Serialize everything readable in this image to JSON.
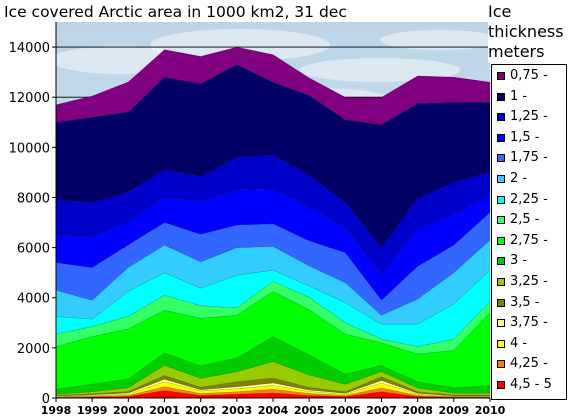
{
  "chart_data": {
    "type": "area",
    "stacked": true,
    "title": "Ice covered Arctic area in 1000 km2, 31 dec",
    "legend_title": [
      "Ice",
      "thickness",
      "meters"
    ],
    "legend_position": "right",
    "xlabel": "",
    "ylabel": "",
    "ylim": [
      0,
      15000
    ],
    "yticks": [
      0,
      2000,
      4000,
      6000,
      8000,
      10000,
      12000,
      14000
    ],
    "ytick_labels": [
      "0",
      "2000",
      "4000",
      "6000",
      "8000",
      "10000",
      "12000",
      "14000"
    ],
    "x": [
      "1998",
      "1999",
      "2000",
      "2001",
      "2002",
      "2003",
      "2004",
      "2005",
      "2006",
      "2007",
      "2008",
      "2009",
      "2010"
    ],
    "grid": "horizontal",
    "series": [
      {
        "name": "4,5 - 5",
        "color": "#ff0000",
        "values": [
          20,
          40,
          60,
          300,
          100,
          150,
          200,
          100,
          60,
          250,
          60,
          30,
          30
        ]
      },
      {
        "name": "4,25 -",
        "color": "#ff7f00",
        "values": [
          20,
          30,
          40,
          150,
          80,
          100,
          150,
          80,
          40,
          150,
          40,
          20,
          20
        ]
      },
      {
        "name": "4 -",
        "color": "#ffff00",
        "values": [
          20,
          30,
          50,
          200,
          100,
          120,
          150,
          80,
          50,
          200,
          50,
          20,
          20
        ]
      },
      {
        "name": "3,75 -",
        "color": "#ffff99",
        "values": [
          20,
          30,
          50,
          100,
          50,
          80,
          100,
          60,
          40,
          100,
          40,
          20,
          20
        ]
      },
      {
        "name": "3,5 -",
        "color": "#808000",
        "values": [
          20,
          40,
          60,
          150,
          100,
          200,
          200,
          100,
          60,
          150,
          60,
          30,
          30
        ]
      },
      {
        "name": "3,25 -",
        "color": "#99cc00",
        "values": [
          50,
          80,
          150,
          400,
          350,
          400,
          650,
          500,
          300,
          200,
          150,
          80,
          80
        ]
      },
      {
        "name": "3 -",
        "color": "#00cc00",
        "values": [
          200,
          300,
          350,
          500,
          500,
          550,
          1000,
          800,
          400,
          250,
          250,
          200,
          300
        ]
      },
      {
        "name": "2,75 -",
        "color": "#00ff00",
        "values": [
          1700,
          1900,
          2000,
          1700,
          1900,
          1700,
          1800,
          1800,
          1600,
          900,
          1100,
          1500,
          2900
        ]
      },
      {
        "name": "2,5 -",
        "color": "#33ff66",
        "values": [
          500,
          400,
          500,
          600,
          500,
          300,
          400,
          500,
          450,
          150,
          300,
          450,
          450
        ]
      },
      {
        "name": "2,25 -",
        "color": "#00ffff",
        "values": [
          700,
          300,
          1000,
          900,
          700,
          1300,
          450,
          450,
          800,
          600,
          900,
          1400,
          1250
        ]
      },
      {
        "name": "2 -",
        "color": "#33ccff",
        "values": [
          1050,
          750,
          950,
          1100,
          1050,
          1100,
          950,
          800,
          800,
          350,
          1000,
          1250,
          1200
        ]
      },
      {
        "name": "1,75 -",
        "color": "#3366ff",
        "values": [
          1100,
          1300,
          900,
          900,
          1100,
          900,
          900,
          1000,
          1200,
          600,
          1300,
          1100,
          1100
        ]
      },
      {
        "name": "1,5 -",
        "color": "#0000ff",
        "values": [
          1100,
          1200,
          900,
          1000,
          1300,
          1400,
          1400,
          1300,
          1000,
          1000,
          1500,
          1200,
          700
        ]
      },
      {
        "name": "1,25 -",
        "color": "#0000cc",
        "values": [
          1400,
          1400,
          1200,
          1100,
          1000,
          1300,
          1350,
          1300,
          1000,
          1100,
          1200,
          1300,
          900
        ]
      },
      {
        "name": "1 -",
        "color": "#000066",
        "values": [
          3100,
          3400,
          3200,
          3700,
          3700,
          3700,
          2900,
          3200,
          3300,
          4900,
          3800,
          3200,
          2800
        ]
      },
      {
        "name": "0,75 -",
        "color": "#800080",
        "values": [
          700,
          850,
          1200,
          1100,
          1100,
          700,
          1100,
          700,
          900,
          1100,
          1100,
          1000,
          800
        ]
      }
    ]
  }
}
